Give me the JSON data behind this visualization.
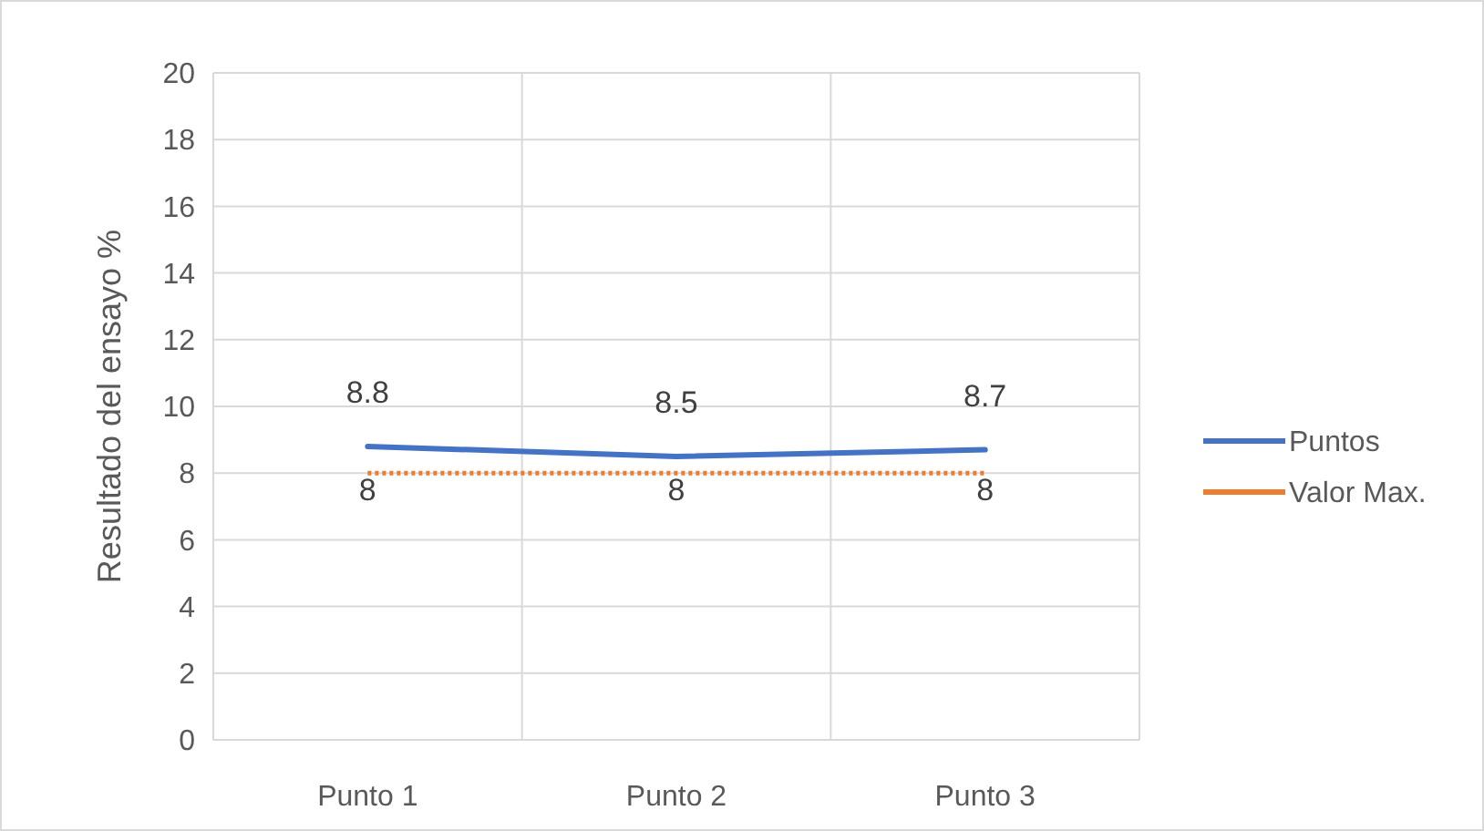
{
  "chart_data": {
    "type": "line",
    "ylabel": "Resultado del ensayo %",
    "categories": [
      "Punto 1",
      "Punto 2",
      "Punto 3"
    ],
    "series": [
      {
        "name": "Puntos",
        "color": "#4472c4",
        "values": [
          8.8,
          8.5,
          8.7
        ],
        "line_style": "solid"
      },
      {
        "name": "Valor Max.",
        "color": "#ed7d31",
        "values": [
          8,
          8,
          8
        ],
        "line_style": "dotted"
      }
    ],
    "ylim": [
      0,
      20
    ],
    "yticks": [
      0,
      2,
      4,
      6,
      8,
      10,
      12,
      14,
      16,
      18,
      20
    ],
    "grid": true,
    "legend": "right",
    "data_labels": true,
    "marker": "none"
  }
}
